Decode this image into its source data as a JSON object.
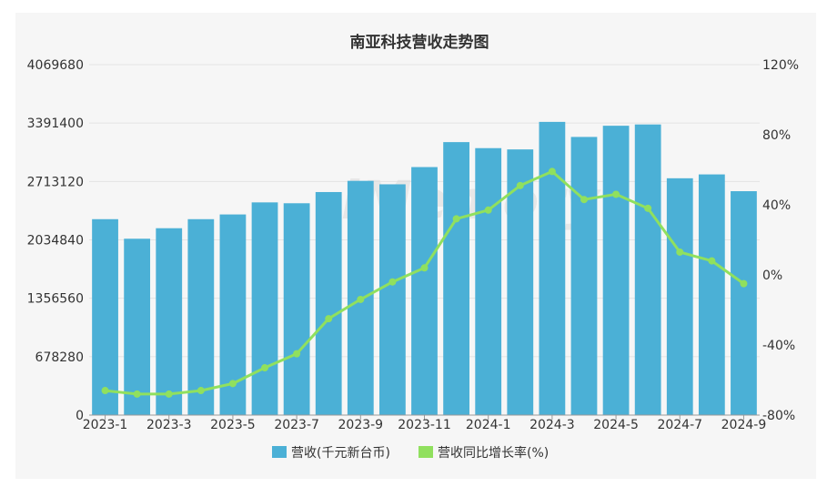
{
  "chart_data": {
    "type": "bar-line",
    "title": "南亚科技营收走势图",
    "categories": [
      "2023-1",
      "2023-2",
      "2023-3",
      "2023-4",
      "2023-5",
      "2023-6",
      "2023-7",
      "2023-8",
      "2023-9",
      "2023-10",
      "2023-11",
      "2023-12",
      "2024-1",
      "2024-2",
      "2024-3",
      "2024-4",
      "2024-5",
      "2024-6",
      "2024-7",
      "2024-8",
      "2024-9"
    ],
    "x_tick_labels": [
      "2023-1",
      "2023-3",
      "2023-5",
      "2023-7",
      "2023-9",
      "2023-11",
      "2024-1",
      "2024-3",
      "2024-5",
      "2024-7",
      "2024-9"
    ],
    "y_left": {
      "min": 0,
      "max": 4069680,
      "ticks": [
        "0",
        "678280",
        "1356560",
        "2034840",
        "2713120",
        "3391400",
        "4069680"
      ]
    },
    "y_right": {
      "min": -80,
      "max": 120,
      "ticks": [
        "-80%",
        "-40%",
        "0%",
        "40%",
        "80%",
        "120%"
      ]
    },
    "series": [
      {
        "name": "营收(千元新台币)",
        "type": "bar",
        "color": "#4bb0d6",
        "values": [
          2275000,
          2048000,
          2170000,
          2275000,
          2330000,
          2470000,
          2460000,
          2590000,
          2720000,
          2680000,
          2880000,
          3170000,
          3100000,
          3085000,
          3405000,
          3230000,
          3360000,
          3375000,
          2750000,
          2795000,
          2600000
        ]
      },
      {
        "name": "营收同比增长率(%)",
        "type": "line",
        "color": "#90e05e",
        "values": [
          -66.0,
          -68.0,
          -68.0,
          -66.0,
          -62.0,
          -53.0,
          -45.0,
          -25.0,
          -14.0,
          -4.0,
          4.0,
          32.0,
          37.0,
          51.0,
          59.0,
          43.0,
          46.0,
          38.0,
          13.0,
          8.0,
          -5.0
        ]
      }
    ],
    "legend_position": "bottom-center",
    "grid": true
  }
}
